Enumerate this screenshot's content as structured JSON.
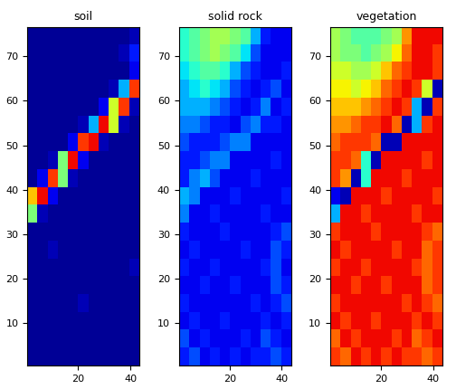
{
  "chart_data": [
    {
      "type": "heatmap",
      "title": "soil",
      "color": "jet",
      "color_range": [
        0,
        1
      ],
      "xlim": [
        0.5,
        43.5
      ],
      "ylim": [
        0.5,
        76.5
      ],
      "xticks": [
        20,
        40
      ],
      "yticks": [
        10,
        20,
        30,
        40,
        50,
        60,
        70
      ],
      "cells": [
        [
          0.02,
          0.02,
          0.02,
          0.02,
          0.02,
          0.02,
          0.02,
          0.02,
          0.02,
          0.02,
          0.05
        ],
        [
          0.02,
          0.02,
          0.02,
          0.02,
          0.02,
          0.02,
          0.02,
          0.02,
          0.02,
          0.05,
          0.15
        ],
        [
          0.02,
          0.02,
          0.02,
          0.02,
          0.02,
          0.02,
          0.02,
          0.02,
          0.02,
          0.02,
          0.1
        ],
        [
          0.02,
          0.02,
          0.02,
          0.02,
          0.02,
          0.02,
          0.02,
          0.02,
          0.05,
          0.3,
          0.85
        ],
        [
          0.02,
          0.02,
          0.02,
          0.02,
          0.02,
          0.02,
          0.02,
          0.1,
          0.6,
          0.85,
          0.05
        ],
        [
          0.02,
          0.02,
          0.02,
          0.02,
          0.02,
          0.05,
          0.3,
          0.9,
          0.6,
          0.05,
          0.02
        ],
        [
          0.02,
          0.02,
          0.02,
          0.02,
          0.1,
          0.85,
          0.9,
          0.05,
          0.02,
          0.02,
          0.02
        ],
        [
          0.02,
          0.02,
          0.05,
          0.5,
          0.9,
          0.1,
          0.02,
          0.02,
          0.02,
          0.02,
          0.02
        ],
        [
          0.02,
          0.1,
          0.85,
          0.5,
          0.05,
          0.02,
          0.02,
          0.02,
          0.02,
          0.02,
          0.02
        ],
        [
          0.7,
          0.9,
          0.1,
          0.02,
          0.02,
          0.02,
          0.02,
          0.02,
          0.02,
          0.02,
          0.02
        ],
        [
          0.5,
          0.05,
          0.02,
          0.02,
          0.02,
          0.02,
          0.02,
          0.02,
          0.02,
          0.02,
          0.02
        ],
        [
          0.02,
          0.02,
          0.02,
          0.02,
          0.02,
          0.02,
          0.02,
          0.02,
          0.02,
          0.02,
          0.02
        ],
        [
          0.02,
          0.02,
          0.05,
          0.02,
          0.02,
          0.02,
          0.02,
          0.02,
          0.02,
          0.02,
          0.02
        ],
        [
          0.02,
          0.02,
          0.02,
          0.02,
          0.02,
          0.02,
          0.02,
          0.02,
          0.02,
          0.02,
          0.05
        ],
        [
          0.02,
          0.02,
          0.02,
          0.02,
          0.02,
          0.02,
          0.02,
          0.02,
          0.02,
          0.02,
          0.02
        ],
        [
          0.02,
          0.02,
          0.02,
          0.02,
          0.02,
          0.05,
          0.02,
          0.02,
          0.02,
          0.02,
          0.02
        ],
        [
          0.02,
          0.02,
          0.02,
          0.02,
          0.02,
          0.02,
          0.02,
          0.02,
          0.02,
          0.02,
          0.02
        ],
        [
          0.02,
          0.02,
          0.02,
          0.02,
          0.02,
          0.02,
          0.02,
          0.02,
          0.02,
          0.02,
          0.02
        ],
        [
          0.02,
          0.02,
          0.02,
          0.02,
          0.02,
          0.02,
          0.02,
          0.02,
          0.02,
          0.02,
          0.02
        ]
      ]
    },
    {
      "type": "heatmap",
      "title": "solid rock",
      "color": "jet",
      "color_range": [
        0,
        1
      ],
      "xlim": [
        0.5,
        43.5
      ],
      "ylim": [
        0.5,
        76.5
      ],
      "xticks": [
        20,
        40
      ],
      "yticks": [
        10,
        20,
        30,
        40,
        50,
        60,
        70
      ],
      "cells": [
        [
          0.4,
          0.45,
          0.5,
          0.55,
          0.55,
          0.5,
          0.45,
          0.3,
          0.15,
          0.1,
          0.1
        ],
        [
          0.4,
          0.45,
          0.5,
          0.55,
          0.5,
          0.45,
          0.35,
          0.2,
          0.1,
          0.1,
          0.1
        ],
        [
          0.35,
          0.4,
          0.45,
          0.45,
          0.4,
          0.3,
          0.2,
          0.15,
          0.1,
          0.1,
          0.15
        ],
        [
          0.3,
          0.35,
          0.4,
          0.35,
          0.3,
          0.2,
          0.15,
          0.1,
          0.15,
          0.2,
          0.1
        ],
        [
          0.3,
          0.3,
          0.3,
          0.25,
          0.2,
          0.15,
          0.1,
          0.15,
          0.25,
          0.1,
          0.15
        ],
        [
          0.25,
          0.25,
          0.2,
          0.15,
          0.15,
          0.1,
          0.2,
          0.25,
          0.15,
          0.15,
          0.1
        ],
        [
          0.2,
          0.15,
          0.15,
          0.15,
          0.2,
          0.25,
          0.25,
          0.1,
          0.1,
          0.1,
          0.1
        ],
        [
          0.15,
          0.15,
          0.2,
          0.25,
          0.25,
          0.1,
          0.1,
          0.1,
          0.1,
          0.15,
          0.1
        ],
        [
          0.15,
          0.25,
          0.3,
          0.2,
          0.1,
          0.1,
          0.1,
          0.15,
          0.1,
          0.1,
          0.1
        ],
        [
          0.3,
          0.25,
          0.1,
          0.1,
          0.1,
          0.15,
          0.1,
          0.1,
          0.1,
          0.1,
          0.15
        ],
        [
          0.25,
          0.1,
          0.1,
          0.15,
          0.1,
          0.1,
          0.1,
          0.1,
          0.15,
          0.1,
          0.1
        ],
        [
          0.15,
          0.1,
          0.1,
          0.1,
          0.15,
          0.1,
          0.1,
          0.1,
          0.1,
          0.15,
          0.2
        ],
        [
          0.1,
          0.15,
          0.1,
          0.1,
          0.1,
          0.1,
          0.15,
          0.1,
          0.1,
          0.2,
          0.15
        ],
        [
          0.15,
          0.1,
          0.1,
          0.15,
          0.1,
          0.1,
          0.1,
          0.1,
          0.15,
          0.2,
          0.1
        ],
        [
          0.1,
          0.1,
          0.15,
          0.1,
          0.1,
          0.15,
          0.1,
          0.1,
          0.1,
          0.2,
          0.15
        ],
        [
          0.15,
          0.1,
          0.1,
          0.1,
          0.1,
          0.1,
          0.1,
          0.15,
          0.1,
          0.15,
          0.2
        ],
        [
          0.1,
          0.15,
          0.1,
          0.1,
          0.15,
          0.1,
          0.1,
          0.1,
          0.15,
          0.1,
          0.15
        ],
        [
          0.2,
          0.1,
          0.15,
          0.1,
          0.1,
          0.1,
          0.15,
          0.1,
          0.2,
          0.15,
          0.1
        ],
        [
          0.15,
          0.2,
          0.1,
          0.15,
          0.1,
          0.15,
          0.1,
          0.15,
          0.15,
          0.2,
          0.15
        ]
      ]
    },
    {
      "type": "heatmap",
      "title": "vegetation",
      "color": "jet",
      "color_range": [
        0,
        1
      ],
      "xlim": [
        0.5,
        43.5
      ],
      "ylim": [
        0.5,
        76.5
      ],
      "xticks": [
        20,
        40
      ],
      "yticks": [
        10,
        20,
        30,
        40,
        50,
        60,
        70
      ],
      "cells": [
        [
          0.55,
          0.5,
          0.45,
          0.45,
          0.45,
          0.5,
          0.55,
          0.75,
          0.9,
          0.9,
          0.9
        ],
        [
          0.55,
          0.5,
          0.5,
          0.45,
          0.5,
          0.55,
          0.65,
          0.8,
          0.9,
          0.9,
          0.85
        ],
        [
          0.6,
          0.6,
          0.55,
          0.55,
          0.6,
          0.7,
          0.8,
          0.85,
          0.9,
          0.9,
          0.85
        ],
        [
          0.65,
          0.65,
          0.6,
          0.65,
          0.7,
          0.8,
          0.85,
          0.9,
          0.85,
          0.6,
          0.05
        ],
        [
          0.7,
          0.7,
          0.7,
          0.75,
          0.8,
          0.85,
          0.9,
          0.85,
          0.3,
          0.05,
          0.85
        ],
        [
          0.75,
          0.75,
          0.8,
          0.85,
          0.85,
          0.9,
          0.8,
          0.05,
          0.3,
          0.85,
          0.9
        ],
        [
          0.8,
          0.85,
          0.85,
          0.85,
          0.8,
          0.05,
          0.05,
          0.9,
          0.9,
          0.9,
          0.9
        ],
        [
          0.85,
          0.85,
          0.8,
          0.4,
          0.05,
          0.9,
          0.9,
          0.9,
          0.9,
          0.85,
          0.9
        ],
        [
          0.85,
          0.75,
          0.05,
          0.4,
          0.9,
          0.9,
          0.9,
          0.85,
          0.9,
          0.9,
          0.9
        ],
        [
          0.1,
          0.05,
          0.9,
          0.9,
          0.9,
          0.85,
          0.9,
          0.9,
          0.9,
          0.9,
          0.85
        ],
        [
          0.3,
          0.9,
          0.9,
          0.85,
          0.9,
          0.9,
          0.9,
          0.9,
          0.85,
          0.9,
          0.9
        ],
        [
          0.85,
          0.9,
          0.9,
          0.9,
          0.85,
          0.9,
          0.9,
          0.9,
          0.9,
          0.85,
          0.8
        ],
        [
          0.9,
          0.85,
          0.9,
          0.9,
          0.9,
          0.9,
          0.85,
          0.9,
          0.9,
          0.8,
          0.85
        ],
        [
          0.85,
          0.9,
          0.9,
          0.85,
          0.9,
          0.9,
          0.9,
          0.9,
          0.85,
          0.8,
          0.85
        ],
        [
          0.9,
          0.9,
          0.85,
          0.9,
          0.9,
          0.85,
          0.9,
          0.9,
          0.9,
          0.8,
          0.85
        ],
        [
          0.85,
          0.9,
          0.9,
          0.9,
          0.9,
          0.9,
          0.9,
          0.85,
          0.9,
          0.85,
          0.8
        ],
        [
          0.9,
          0.85,
          0.9,
          0.9,
          0.85,
          0.9,
          0.9,
          0.9,
          0.85,
          0.9,
          0.85
        ],
        [
          0.8,
          0.9,
          0.85,
          0.9,
          0.9,
          0.9,
          0.85,
          0.9,
          0.8,
          0.85,
          0.9
        ],
        [
          0.85,
          0.8,
          0.9,
          0.85,
          0.9,
          0.85,
          0.9,
          0.85,
          0.85,
          0.8,
          0.85
        ]
      ]
    }
  ]
}
